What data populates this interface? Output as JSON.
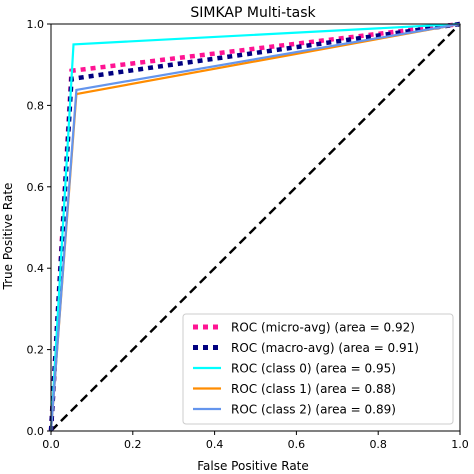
{
  "chart_data": {
    "type": "line",
    "title": "SIMKAP Multi-task",
    "xlabel": "False Positive Rate",
    "ylabel": "True Positive Rate",
    "xlim": [
      0.0,
      1.0
    ],
    "ylim": [
      0.0,
      1.0
    ],
    "xticks": [
      "0.0",
      "0.2",
      "0.4",
      "0.6",
      "0.8",
      "1.0"
    ],
    "yticks": [
      "0.0",
      "0.2",
      "0.4",
      "0.6",
      "0.8",
      "1.0"
    ],
    "grid": false,
    "legend_position": "lower-right",
    "series": [
      {
        "name": "ROC (micro-avg) (area = 0.92)",
        "style": "dotted",
        "color": "#ff1493",
        "x": [
          0.0,
          0.05,
          1.0
        ],
        "y": [
          0.0,
          0.885,
          1.0
        ]
      },
      {
        "name": "ROC (macro-avg) (area = 0.91)",
        "style": "dotted",
        "color": "#000080",
        "x": [
          0.0,
          0.05,
          1.0
        ],
        "y": [
          0.0,
          0.865,
          1.0
        ]
      },
      {
        "name": "ROC (class 0) (area = 0.95)",
        "style": "solid",
        "color": "#00ffff",
        "x": [
          0.0,
          0.055,
          1.0
        ],
        "y": [
          0.0,
          0.95,
          1.0
        ]
      },
      {
        "name": "ROC (class 1) (area = 0.88)",
        "style": "solid",
        "color": "#ff8c00",
        "x": [
          0.0,
          0.062,
          1.0
        ],
        "y": [
          0.0,
          0.828,
          1.0
        ]
      },
      {
        "name": "ROC (class 2) (area = 0.89)",
        "style": "solid",
        "color": "#6495ed",
        "x": [
          0.0,
          0.062,
          1.0
        ],
        "y": [
          0.0,
          0.838,
          1.0
        ]
      }
    ],
    "reference_line": {
      "style": "dashed",
      "color": "#000000",
      "x": [
        0.0,
        1.0
      ],
      "y": [
        0.0,
        1.0
      ]
    }
  }
}
